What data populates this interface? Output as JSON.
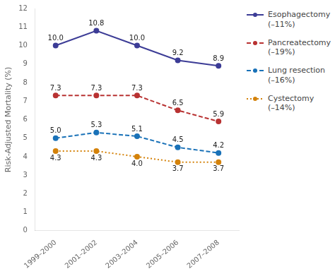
{
  "chart_data": {
    "type": "line",
    "categories": [
      "1999–2000",
      "2001–2002",
      "2003–2004",
      "2005–2006",
      "2007–2008"
    ],
    "series": [
      {
        "name": "Esophagectomy\n(–11%)",
        "color": "#3c3c96",
        "line_style": "solid",
        "marker": "circle",
        "values": [
          10.0,
          10.8,
          10.0,
          9.2,
          8.9
        ],
        "value_labels": [
          "10.0",
          "10.8",
          "10.0",
          "9.2",
          "8.9"
        ]
      },
      {
        "name": "Pancreatectomy\n(–19%)",
        "color": "#b83232",
        "line_style": "dashed",
        "marker": "circle",
        "values": [
          7.3,
          7.3,
          7.3,
          6.5,
          5.9
        ],
        "value_labels": [
          "7.3",
          "7.3",
          "7.3",
          "6.5",
          "5.9"
        ]
      },
      {
        "name": "Lung resection\n(–16%)",
        "color": "#1a72b8",
        "line_style": "dashed",
        "marker": "circle",
        "values": [
          5.0,
          5.3,
          5.1,
          4.5,
          4.2
        ],
        "value_labels": [
          "5.0",
          "5.3",
          "5.1",
          "4.5",
          "4.2"
        ]
      },
      {
        "name": "Cystectomy\n(–14%)",
        "color": "#d4820a",
        "line_style": "dotted",
        "marker": "circle",
        "values": [
          4.3,
          4.3,
          4.0,
          3.7,
          3.7
        ],
        "value_labels": [
          "4.3",
          "4.3",
          "4.0",
          "3.7",
          "3.7"
        ]
      }
    ],
    "ylabel": "Risk-Adjusted Mortality (%)",
    "ylim": [
      0,
      12
    ],
    "yticks": [
      0,
      1,
      2,
      3,
      4,
      5,
      6,
      7,
      8,
      9,
      10,
      11,
      12
    ],
    "grid": false,
    "legend": "right",
    "data_labels": true
  }
}
